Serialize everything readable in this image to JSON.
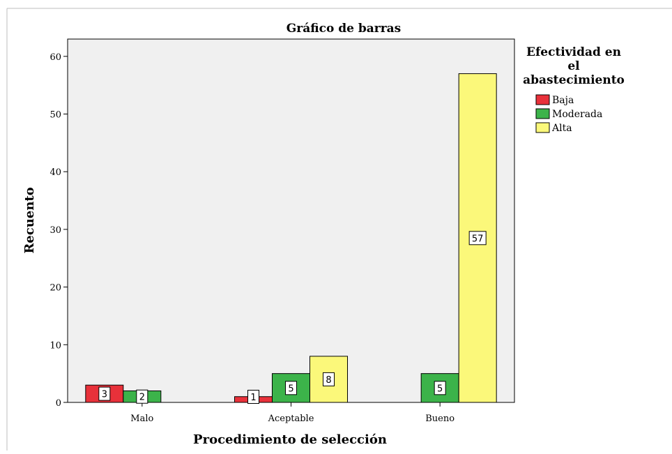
{
  "chart_data": {
    "type": "bar",
    "title": "Gráfico de barras",
    "xlabel": "Procedimiento de selección",
    "ylabel": "Recuento",
    "categories": [
      "Malo",
      "Aceptable",
      "Bueno"
    ],
    "ylim": [
      0,
      63
    ],
    "yticks": [
      0,
      10,
      20,
      30,
      40,
      50,
      60
    ],
    "legend_title": [
      "Efectividad en",
      "el",
      "abastecimiento"
    ],
    "legend_position": "right",
    "grid": false,
    "background": "#f0f0f0",
    "series": [
      {
        "name": "Baja",
        "color": "#e8313a",
        "values": [
          3,
          1,
          null
        ]
      },
      {
        "name": "Moderada",
        "color": "#3cb34a",
        "values": [
          2,
          5,
          5
        ]
      },
      {
        "name": "Alta",
        "color": "#fbf87a",
        "values": [
          null,
          8,
          57
        ]
      }
    ]
  }
}
